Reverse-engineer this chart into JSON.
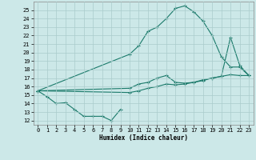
{
  "xlabel": "Humidex (Indice chaleur)",
  "bg_color": "#cce8e8",
  "grid_color": "#aacccc",
  "line_color": "#1a7a6a",
  "xlim": [
    -0.5,
    23.5
  ],
  "ylim": [
    11.5,
    26.0
  ],
  "xticks": [
    0,
    1,
    2,
    3,
    4,
    5,
    6,
    7,
    8,
    9,
    10,
    11,
    12,
    13,
    14,
    15,
    16,
    17,
    18,
    19,
    20,
    21,
    22,
    23
  ],
  "yticks": [
    12,
    13,
    14,
    15,
    16,
    17,
    18,
    19,
    20,
    21,
    22,
    23,
    24,
    25
  ],
  "line1_x": [
    0,
    1,
    2,
    3,
    4,
    5,
    6,
    7,
    8,
    9
  ],
  "line1_y": [
    15.5,
    14.8,
    14.0,
    14.1,
    13.3,
    12.5,
    12.5,
    12.5,
    12.0,
    13.3
  ],
  "line2_x": [
    0,
    10,
    11,
    12,
    13,
    14,
    15,
    16,
    17,
    18,
    19,
    20,
    21,
    22,
    23
  ],
  "line2_y": [
    15.5,
    19.8,
    20.8,
    22.5,
    23.0,
    24.0,
    25.2,
    25.5,
    24.8,
    23.7,
    22.0,
    19.5,
    18.3,
    18.3,
    17.3
  ],
  "line3_x": [
    0,
    10,
    11,
    12,
    13,
    14,
    15,
    16,
    17,
    18,
    19,
    20,
    21,
    22,
    23
  ],
  "line3_y": [
    15.5,
    15.8,
    16.3,
    16.5,
    17.0,
    17.3,
    16.5,
    16.4,
    16.5,
    16.7,
    17.0,
    17.2,
    21.8,
    18.5,
    17.3
  ],
  "line4_x": [
    0,
    10,
    11,
    12,
    13,
    14,
    15,
    16,
    17,
    18,
    19,
    20,
    21,
    22,
    23
  ],
  "line4_y": [
    15.5,
    15.3,
    15.5,
    15.8,
    16.0,
    16.3,
    16.2,
    16.3,
    16.5,
    16.8,
    17.0,
    17.2,
    17.4,
    17.3,
    17.3
  ],
  "figsize": [
    3.2,
    2.0
  ],
  "dpi": 100
}
